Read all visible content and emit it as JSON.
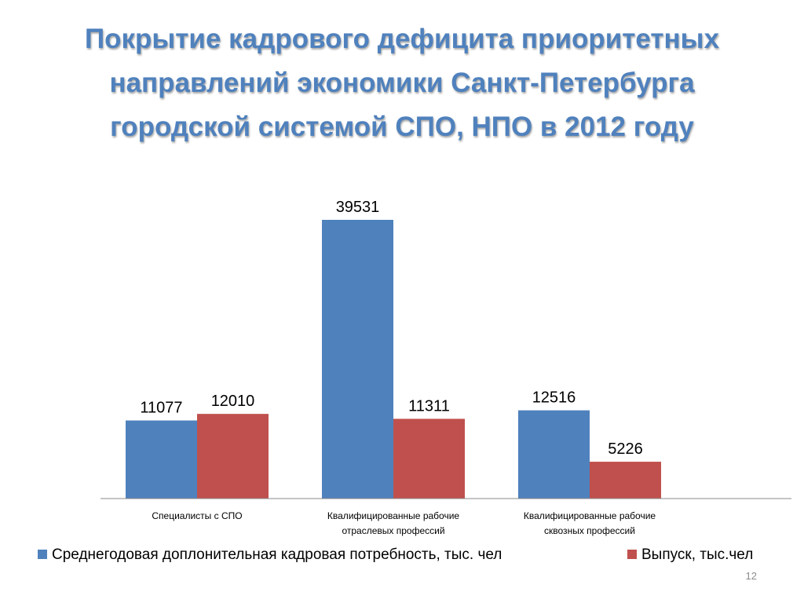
{
  "slide": {
    "title_lines": [
      "Покрытие кадрового дефицита приоритетных",
      "направлений экономики Санкт-Петербурга",
      "городской системой СПО, НПО в 2012 году"
    ],
    "page_number": "12"
  },
  "chart_data": {
    "type": "bar",
    "title": "",
    "xlabel": "",
    "ylabel": "",
    "categories": [
      [
        "Специалисты с СПО"
      ],
      [
        "Квалифицированные рабочие",
        "отраслевых профессий"
      ],
      [
        "Квалифицированные рабочие",
        "сквозных профессий"
      ]
    ],
    "series": [
      {
        "name": "Среднегодовая доплонительная кадровая потребность, тыс. чел",
        "values": [
          11077,
          39531,
          12516
        ],
        "labels": [
          "11077",
          "39531",
          "12516"
        ],
        "color": "#4f81bd"
      },
      {
        "name": "Выпуск, тыс.чел",
        "values": [
          12010,
          11311,
          5226
        ],
        "labels": [
          "12010",
          "11311",
          "5226"
        ],
        "color": "#c0504d"
      }
    ],
    "ylim": [
      0,
      41000
    ],
    "gridlines": false,
    "y_axis_visible": false,
    "data_labels": true,
    "legend_position": "bottom"
  }
}
